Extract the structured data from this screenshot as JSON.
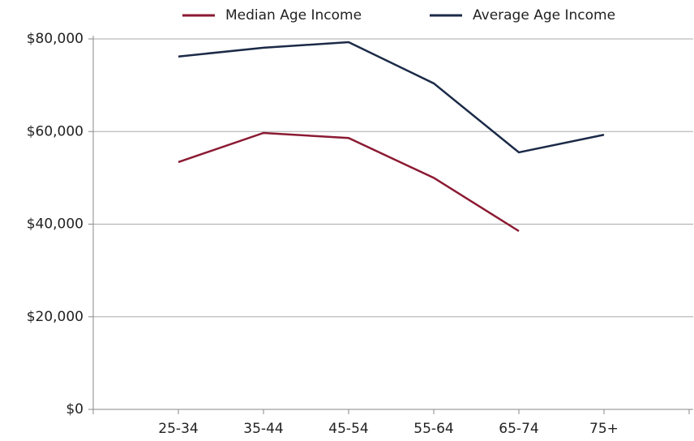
{
  "chart_data": {
    "type": "line",
    "categories": [
      null,
      "25-34",
      "35-44",
      "45-54",
      "55-64",
      "65-74",
      "75+",
      null
    ],
    "series": [
      {
        "name": "Median Age Income",
        "color": "#8b1a32",
        "values": [
          null,
          53400,
          59700,
          58600,
          50000,
          38500,
          null,
          null
        ]
      },
      {
        "name": "Average Age Income",
        "color": "#1b2a47",
        "values": [
          null,
          76200,
          78100,
          79300,
          70400,
          55500,
          59300,
          null
        ]
      }
    ],
    "ylim": [
      0,
      80000
    ],
    "yticks": [
      {
        "value": 0,
        "label": "$0"
      },
      {
        "value": 20000,
        "label": "$20,000"
      },
      {
        "value": 40000,
        "label": "$40,000"
      },
      {
        "value": 60000,
        "label": "$60,000"
      },
      {
        "value": 80000,
        "label": "$80,000"
      }
    ],
    "grid": true,
    "legend": "top"
  }
}
